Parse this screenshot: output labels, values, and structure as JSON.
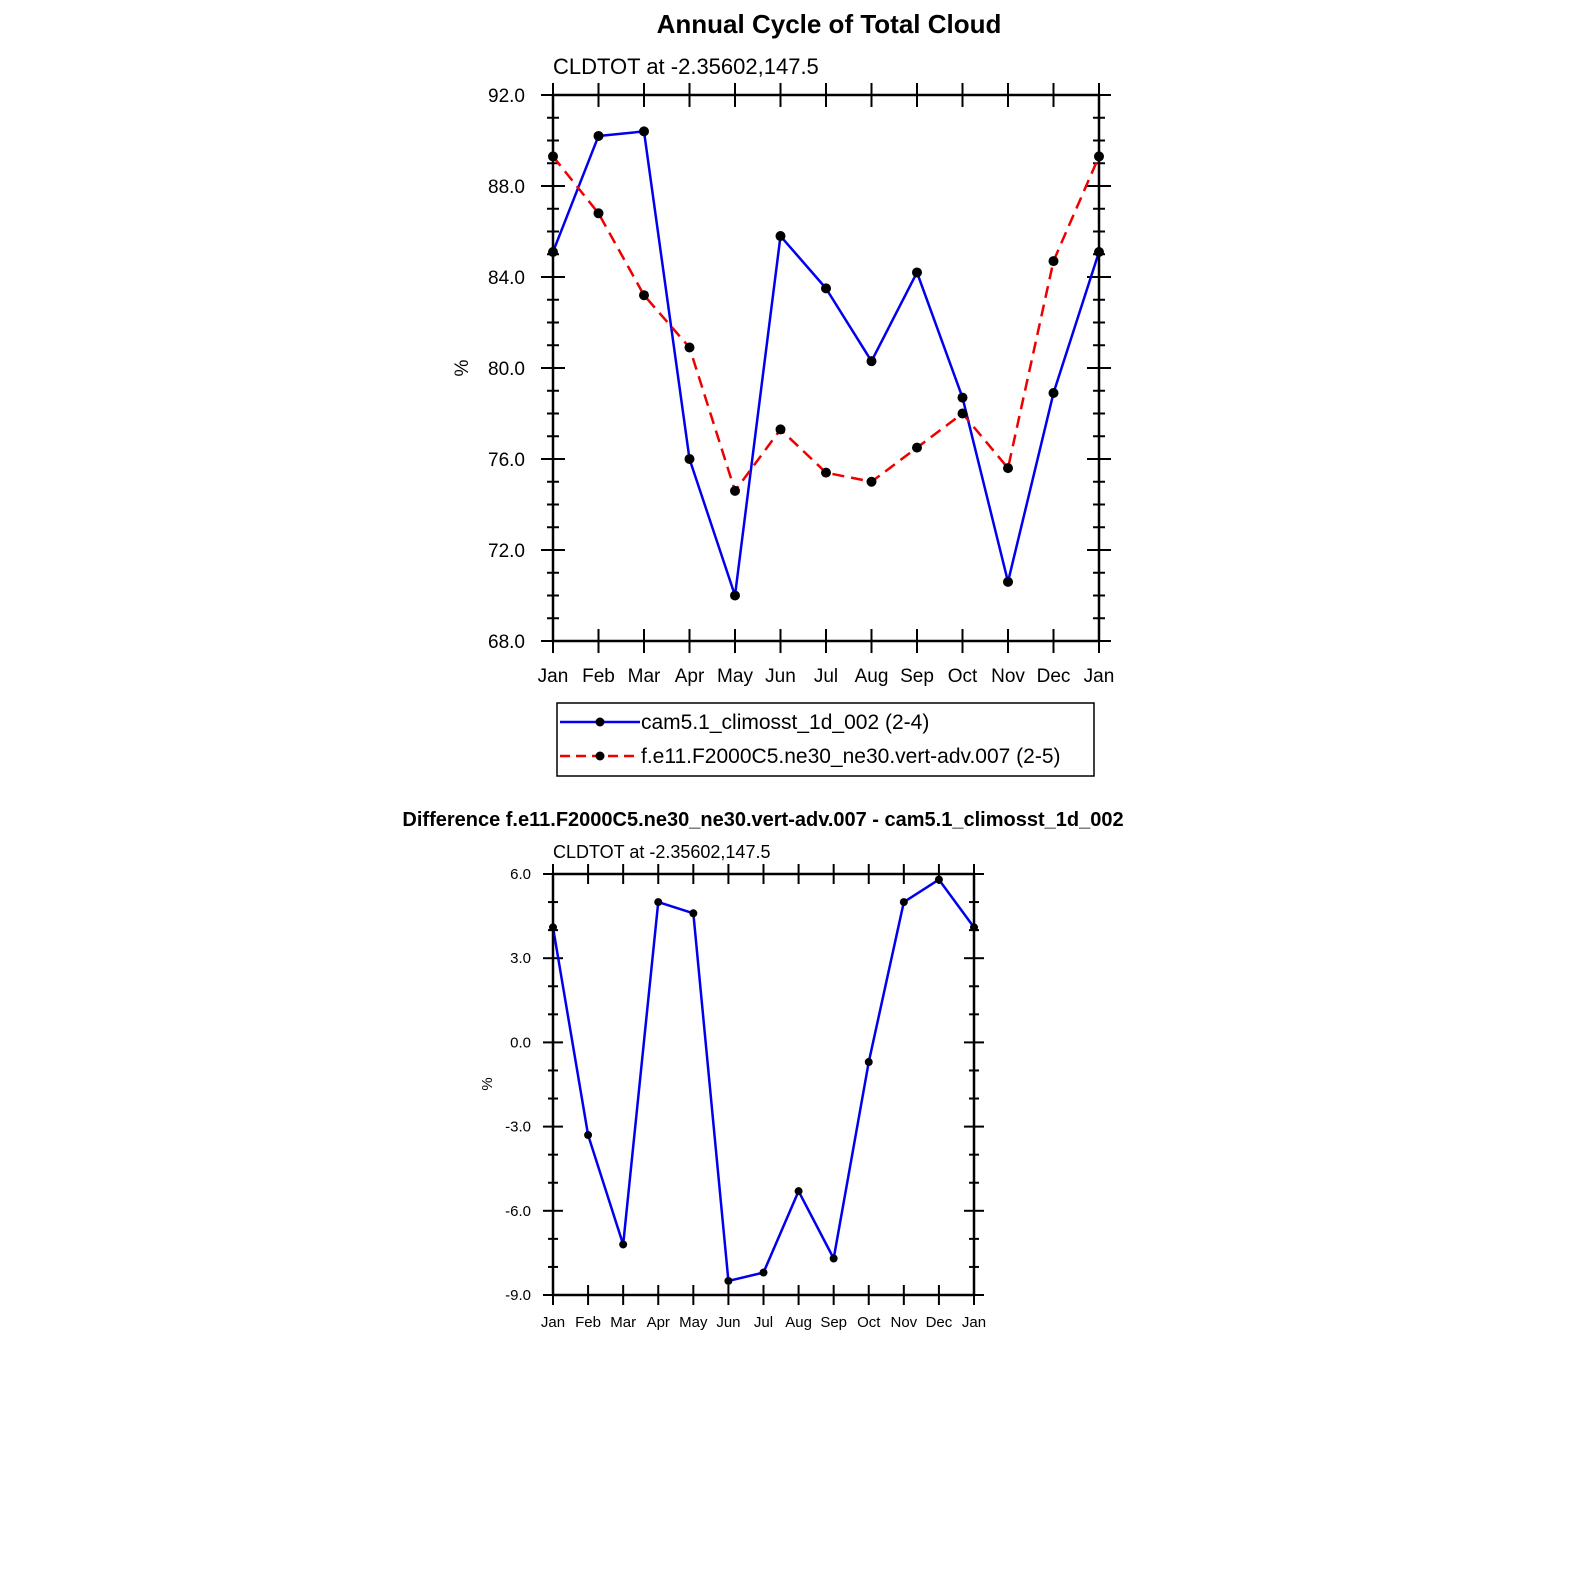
{
  "chart_data": [
    {
      "type": "line",
      "title": "Annual Cycle of Total Cloud",
      "subtitle": "CLDTOT at -2.35602,147.5",
      "xlabel": "",
      "ylabel": "%",
      "categories": [
        "Jan",
        "Feb",
        "Mar",
        "Apr",
        "May",
        "Jun",
        "Jul",
        "Aug",
        "Sep",
        "Oct",
        "Nov",
        "Dec",
        "Jan"
      ],
      "ylim": [
        68.0,
        92.0
      ],
      "yticks": [
        "68.0",
        "72.0",
        "76.0",
        "80.0",
        "84.0",
        "88.0",
        "92.0"
      ],
      "legend_position": "below",
      "series": [
        {
          "name": "cam5.1_climosst_1d_002 (2-4)",
          "color": "#0000ee",
          "dash": "solid",
          "values": [
            85.1,
            90.2,
            90.4,
            76.0,
            70.0,
            85.8,
            83.5,
            80.3,
            84.2,
            78.7,
            70.6,
            78.9,
            85.1
          ]
        },
        {
          "name": "f.e11.F2000C5.ne30_ne30.vert-adv.007 (2-5)",
          "color": "#ee0000",
          "dash": "dashed",
          "values": [
            89.3,
            86.8,
            83.2,
            80.9,
            74.6,
            77.3,
            75.4,
            75.0,
            76.5,
            78.0,
            75.6,
            84.7,
            89.3
          ]
        }
      ]
    },
    {
      "type": "line",
      "title": "Difference f.e11.F2000C5.ne30_ne30.vert-adv.007 - cam5.1_climosst_1d_002",
      "subtitle": "CLDTOT at -2.35602,147.5",
      "xlabel": "",
      "ylabel": "%",
      "categories": [
        "Jan",
        "Feb",
        "Mar",
        "Apr",
        "May",
        "Jun",
        "Jul",
        "Aug",
        "Sep",
        "Oct",
        "Nov",
        "Dec",
        "Jan"
      ],
      "ylim": [
        -9.0,
        6.0
      ],
      "yticks": [
        "-9.0",
        "-6.0",
        "-3.0",
        "0.0",
        "3.0",
        "6.0"
      ],
      "series": [
        {
          "color": "#0000ee",
          "dash": "solid",
          "values": [
            4.1,
            -3.3,
            -7.2,
            5.0,
            4.6,
            -8.5,
            -8.2,
            -5.3,
            -7.7,
            -0.7,
            5.0,
            5.8,
            4.1
          ]
        }
      ]
    }
  ]
}
